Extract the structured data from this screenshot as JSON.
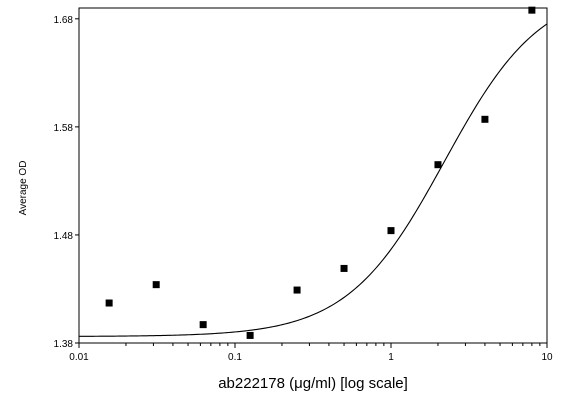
{
  "chart_data": {
    "type": "scatter",
    "title": "",
    "xlabel": "ab222178 (μg/ml) [log scale]",
    "ylabel": "Average OD",
    "x_scale": "log",
    "xlim": [
      0.01,
      10
    ],
    "ylim": [
      1.38,
      1.69
    ],
    "x_ticks": [
      0.01,
      0.1,
      1,
      10
    ],
    "x_tick_labels": [
      "0.01",
      "0.1",
      "1",
      "10"
    ],
    "y_ticks": [
      1.38,
      1.48,
      1.58,
      1.68
    ],
    "y_tick_labels": [
      "1.38",
      "1.48",
      "1.58",
      "1.68"
    ],
    "grid": false,
    "legend": "none",
    "points": [
      {
        "x": 0.0156,
        "y": 1.417
      },
      {
        "x": 0.03125,
        "y": 1.434
      },
      {
        "x": 0.0625,
        "y": 1.397
      },
      {
        "x": 0.125,
        "y": 1.387
      },
      {
        "x": 0.25,
        "y": 1.429
      },
      {
        "x": 0.5,
        "y": 1.449
      },
      {
        "x": 1,
        "y": 1.484
      },
      {
        "x": 2,
        "y": 1.545
      },
      {
        "x": 4,
        "y": 1.587
      },
      {
        "x": 8,
        "y": 1.688
      }
    ],
    "fit": {
      "type": "4PL",
      "bottom": 1.386,
      "top": 1.71,
      "ec50": 2.2,
      "hill": 1.4
    }
  }
}
